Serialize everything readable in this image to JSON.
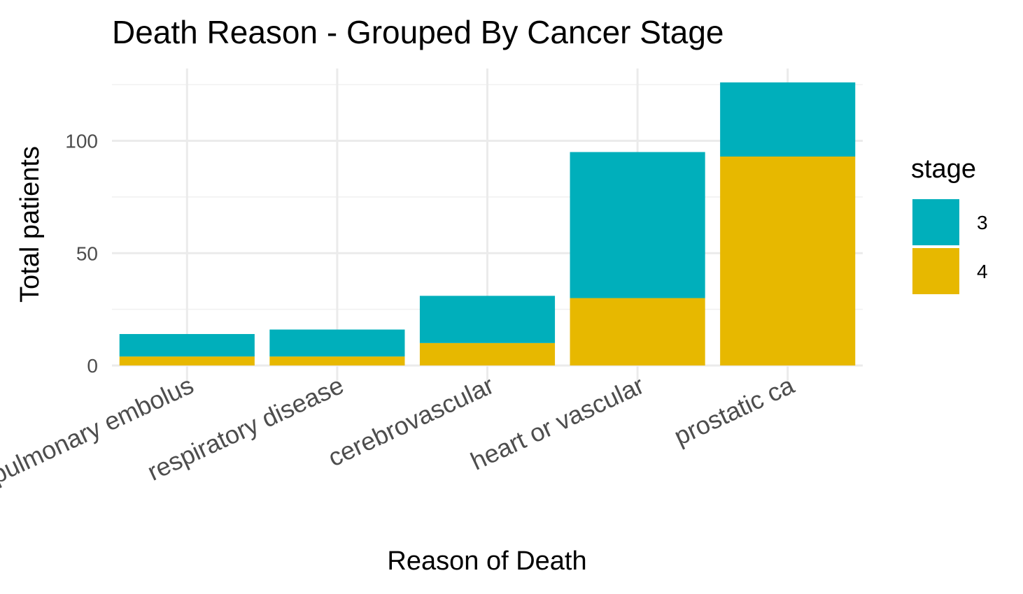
{
  "chart_data": {
    "type": "bar",
    "stacked": true,
    "title": "Death Reason - Grouped By Cancer Stage",
    "xlabel": "Reason of Death",
    "ylabel": "Total patients",
    "categories": [
      "pulmonary embolus",
      "respiratory disease",
      "cerebrovascular",
      "heart or vascular",
      "prostatic ca"
    ],
    "series": [
      {
        "name": "4",
        "color": "#E7B800",
        "values": [
          4,
          4,
          10,
          30,
          93
        ]
      },
      {
        "name": "3",
        "color": "#00AFBB",
        "values": [
          10,
          12,
          21,
          65,
          33
        ]
      }
    ],
    "yticks": [
      0,
      50,
      100
    ],
    "ylim": [
      0,
      126
    ],
    "grid": true,
    "legend": {
      "title": "stage",
      "position": "right",
      "entries": [
        "3",
        "4"
      ]
    }
  }
}
